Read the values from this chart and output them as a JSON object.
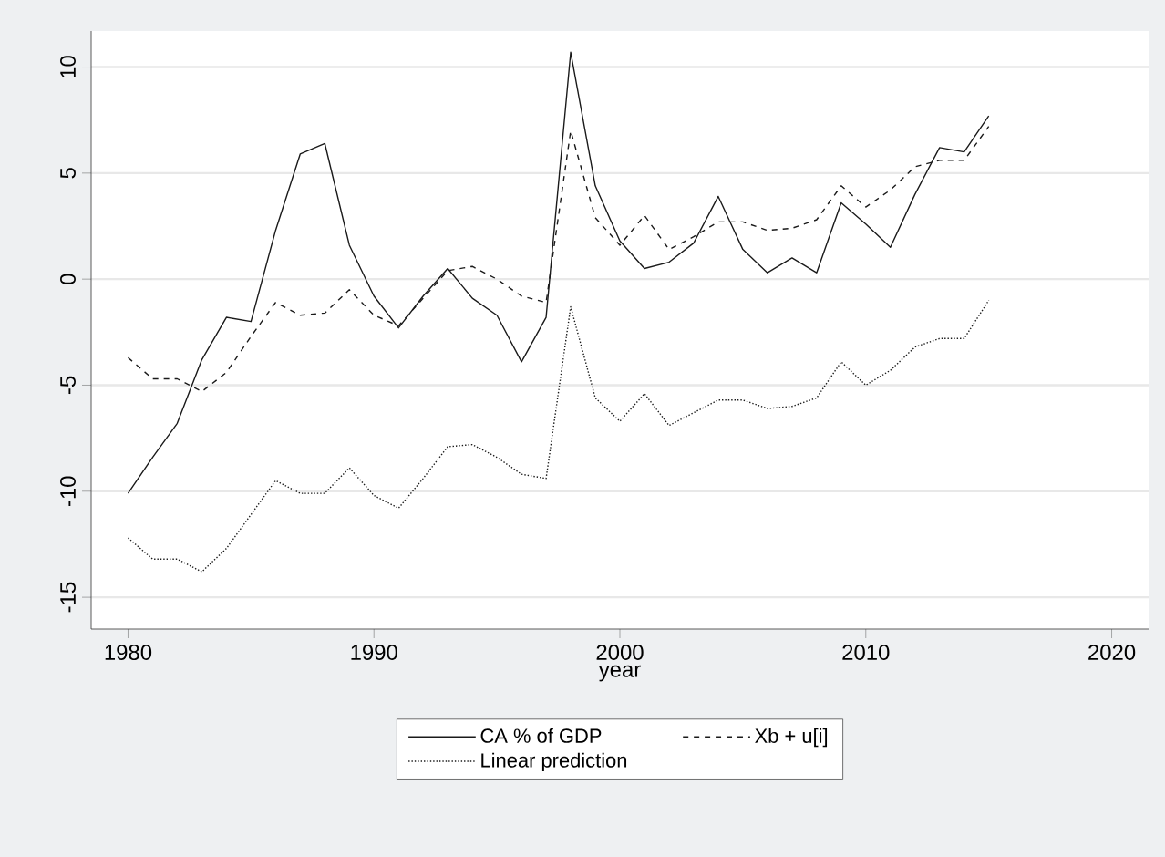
{
  "chart_data": {
    "type": "line",
    "xlabel": "year",
    "x": [
      1980,
      1981,
      1982,
      1983,
      1984,
      1985,
      1986,
      1987,
      1988,
      1989,
      1990,
      1991,
      1992,
      1993,
      1994,
      1995,
      1996,
      1997,
      1998,
      1999,
      2000,
      2001,
      2002,
      2003,
      2004,
      2005,
      2006,
      2007,
      2008,
      2009,
      2010,
      2011,
      2012,
      2013,
      2014,
      2015
    ],
    "series": [
      {
        "name": "CA % of GDP",
        "color": "#1a1a1a",
        "line_style": "solid",
        "values": [
          -10.1,
          -8.4,
          -6.8,
          -3.8,
          -1.8,
          -2.0,
          2.3,
          5.9,
          6.4,
          1.6,
          -0.8,
          -2.3,
          -0.8,
          0.5,
          -0.9,
          -1.7,
          -3.9,
          -1.8,
          10.7,
          4.4,
          1.8,
          0.5,
          0.8,
          1.7,
          3.9,
          1.4,
          0.3,
          1.0,
          0.3,
          3.6,
          2.6,
          1.5,
          4.0,
          6.2,
          6.0,
          7.7
        ]
      },
      {
        "name": "Xb + u[i]",
        "color": "#1a1a1a",
        "line_style": "dashed",
        "values": [
          -3.7,
          -4.7,
          -4.7,
          -5.3,
          -4.4,
          -2.7,
          -1.1,
          -1.7,
          -1.6,
          -0.5,
          -1.7,
          -2.2,
          -0.9,
          0.4,
          0.6,
          0.0,
          -0.8,
          -1.1,
          7.0,
          2.9,
          1.6,
          3.0,
          1.4,
          2.0,
          2.7,
          2.7,
          2.3,
          2.4,
          2.8,
          4.4,
          3.4,
          4.2,
          5.3,
          5.6,
          5.6,
          7.2
        ]
      },
      {
        "name": "Linear prediction",
        "color": "#1a1a1a",
        "line_style": "dotted",
        "values": [
          -12.2,
          -13.2,
          -13.2,
          -13.8,
          -12.7,
          -11.1,
          -9.5,
          -10.1,
          -10.1,
          -8.9,
          -10.2,
          -10.8,
          -9.4,
          -7.9,
          -7.8,
          -8.4,
          -9.2,
          -9.4,
          -1.3,
          -5.6,
          -6.7,
          -5.4,
          -6.9,
          -6.3,
          -5.7,
          -5.7,
          -6.1,
          -6.0,
          -5.6,
          -3.9,
          -5.0,
          -4.3,
          -3.2,
          -2.8,
          -2.8,
          -1.0
        ]
      }
    ],
    "xlim": [
      1978.5,
      2021.5
    ],
    "ylim": [
      -16.5,
      11.7
    ],
    "xticks": [
      1980,
      1990,
      2000,
      2010,
      2020
    ],
    "yticks": [
      -15,
      -10,
      -5,
      0,
      5,
      10
    ],
    "grid": "y",
    "legend": "bottom",
    "marker": "none"
  }
}
